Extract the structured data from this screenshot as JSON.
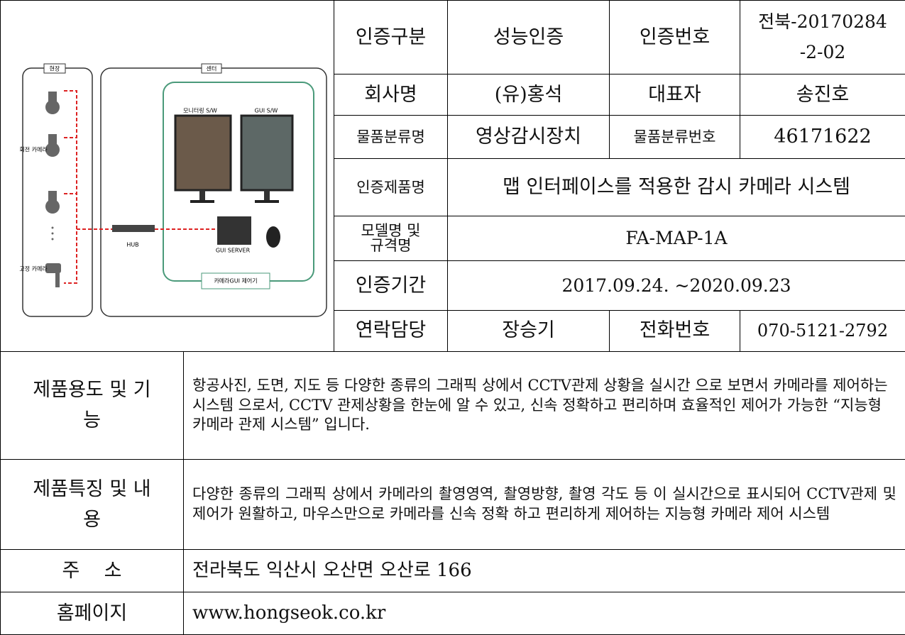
{
  "diagram": {
    "field": "현장",
    "center": "센터",
    "monitoring_sw": "모니터링 S/W",
    "gui_sw": "GUI S/W",
    "rotating_camera": "회전 카메라",
    "fixed_camera": "고정 카메라",
    "hub": "HUB",
    "gui_server": "GUI SERVER",
    "controller": "카메라GUI 제어기"
  },
  "info_table": {
    "rows": [
      [
        "인증구분",
        "성능인증",
        "인증번호",
        "전북-20170284 -2-02"
      ],
      [
        "회사명",
        "(유)홍석",
        "대표자",
        "송진호"
      ],
      [
        "물품분류명",
        "영상감시장치",
        "물품분류번호",
        "46171622"
      ],
      [
        "인증제품명",
        "맵 인터페이스를 적용한 감시 카메라 시스템"
      ],
      [
        "모델명 및 규격명",
        "FA-MAP-1A"
      ],
      [
        "인증기간",
        "2017.09.24. ~2020.09.23"
      ],
      [
        "연락담당",
        "장승기",
        "전화번호",
        "070-5121-2792"
      ]
    ]
  },
  "details": {
    "rows": [
      [
        "제품용도 및 기능",
        "항공사진, 도면, 지도 등 다양한 종류의 그래픽 상에서 CCTV관제 상황을 실시간 으로 보면서 카메라를 제어하는 시스템 으로서, CCTV 관제상황을 한눈에 알 수 있고, 신속 정확하고 편리하며 효율적인 제어가 가능한 “지능형 카메라 관제 시스템” 입니다."
      ],
      [
        "제품특징 및 내용",
        "다양한 종류의 그래픽 상에서 카메라의 촬영영역, 촬영방향, 촬영 각도 등 이 실시간으로 표시되어 CCTV관제 및 제어가 원활하고, 마우스만으로 카메라를 신속 정확 하고 편리하게 제어하는 지능형 카메라 제어 시스템"
      ],
      [
        "주    소",
        "전라북도 익산시 오산면 오산로 166"
      ],
      [
        "홈페이지",
        "www.hongseok.co.kr"
      ]
    ]
  }
}
